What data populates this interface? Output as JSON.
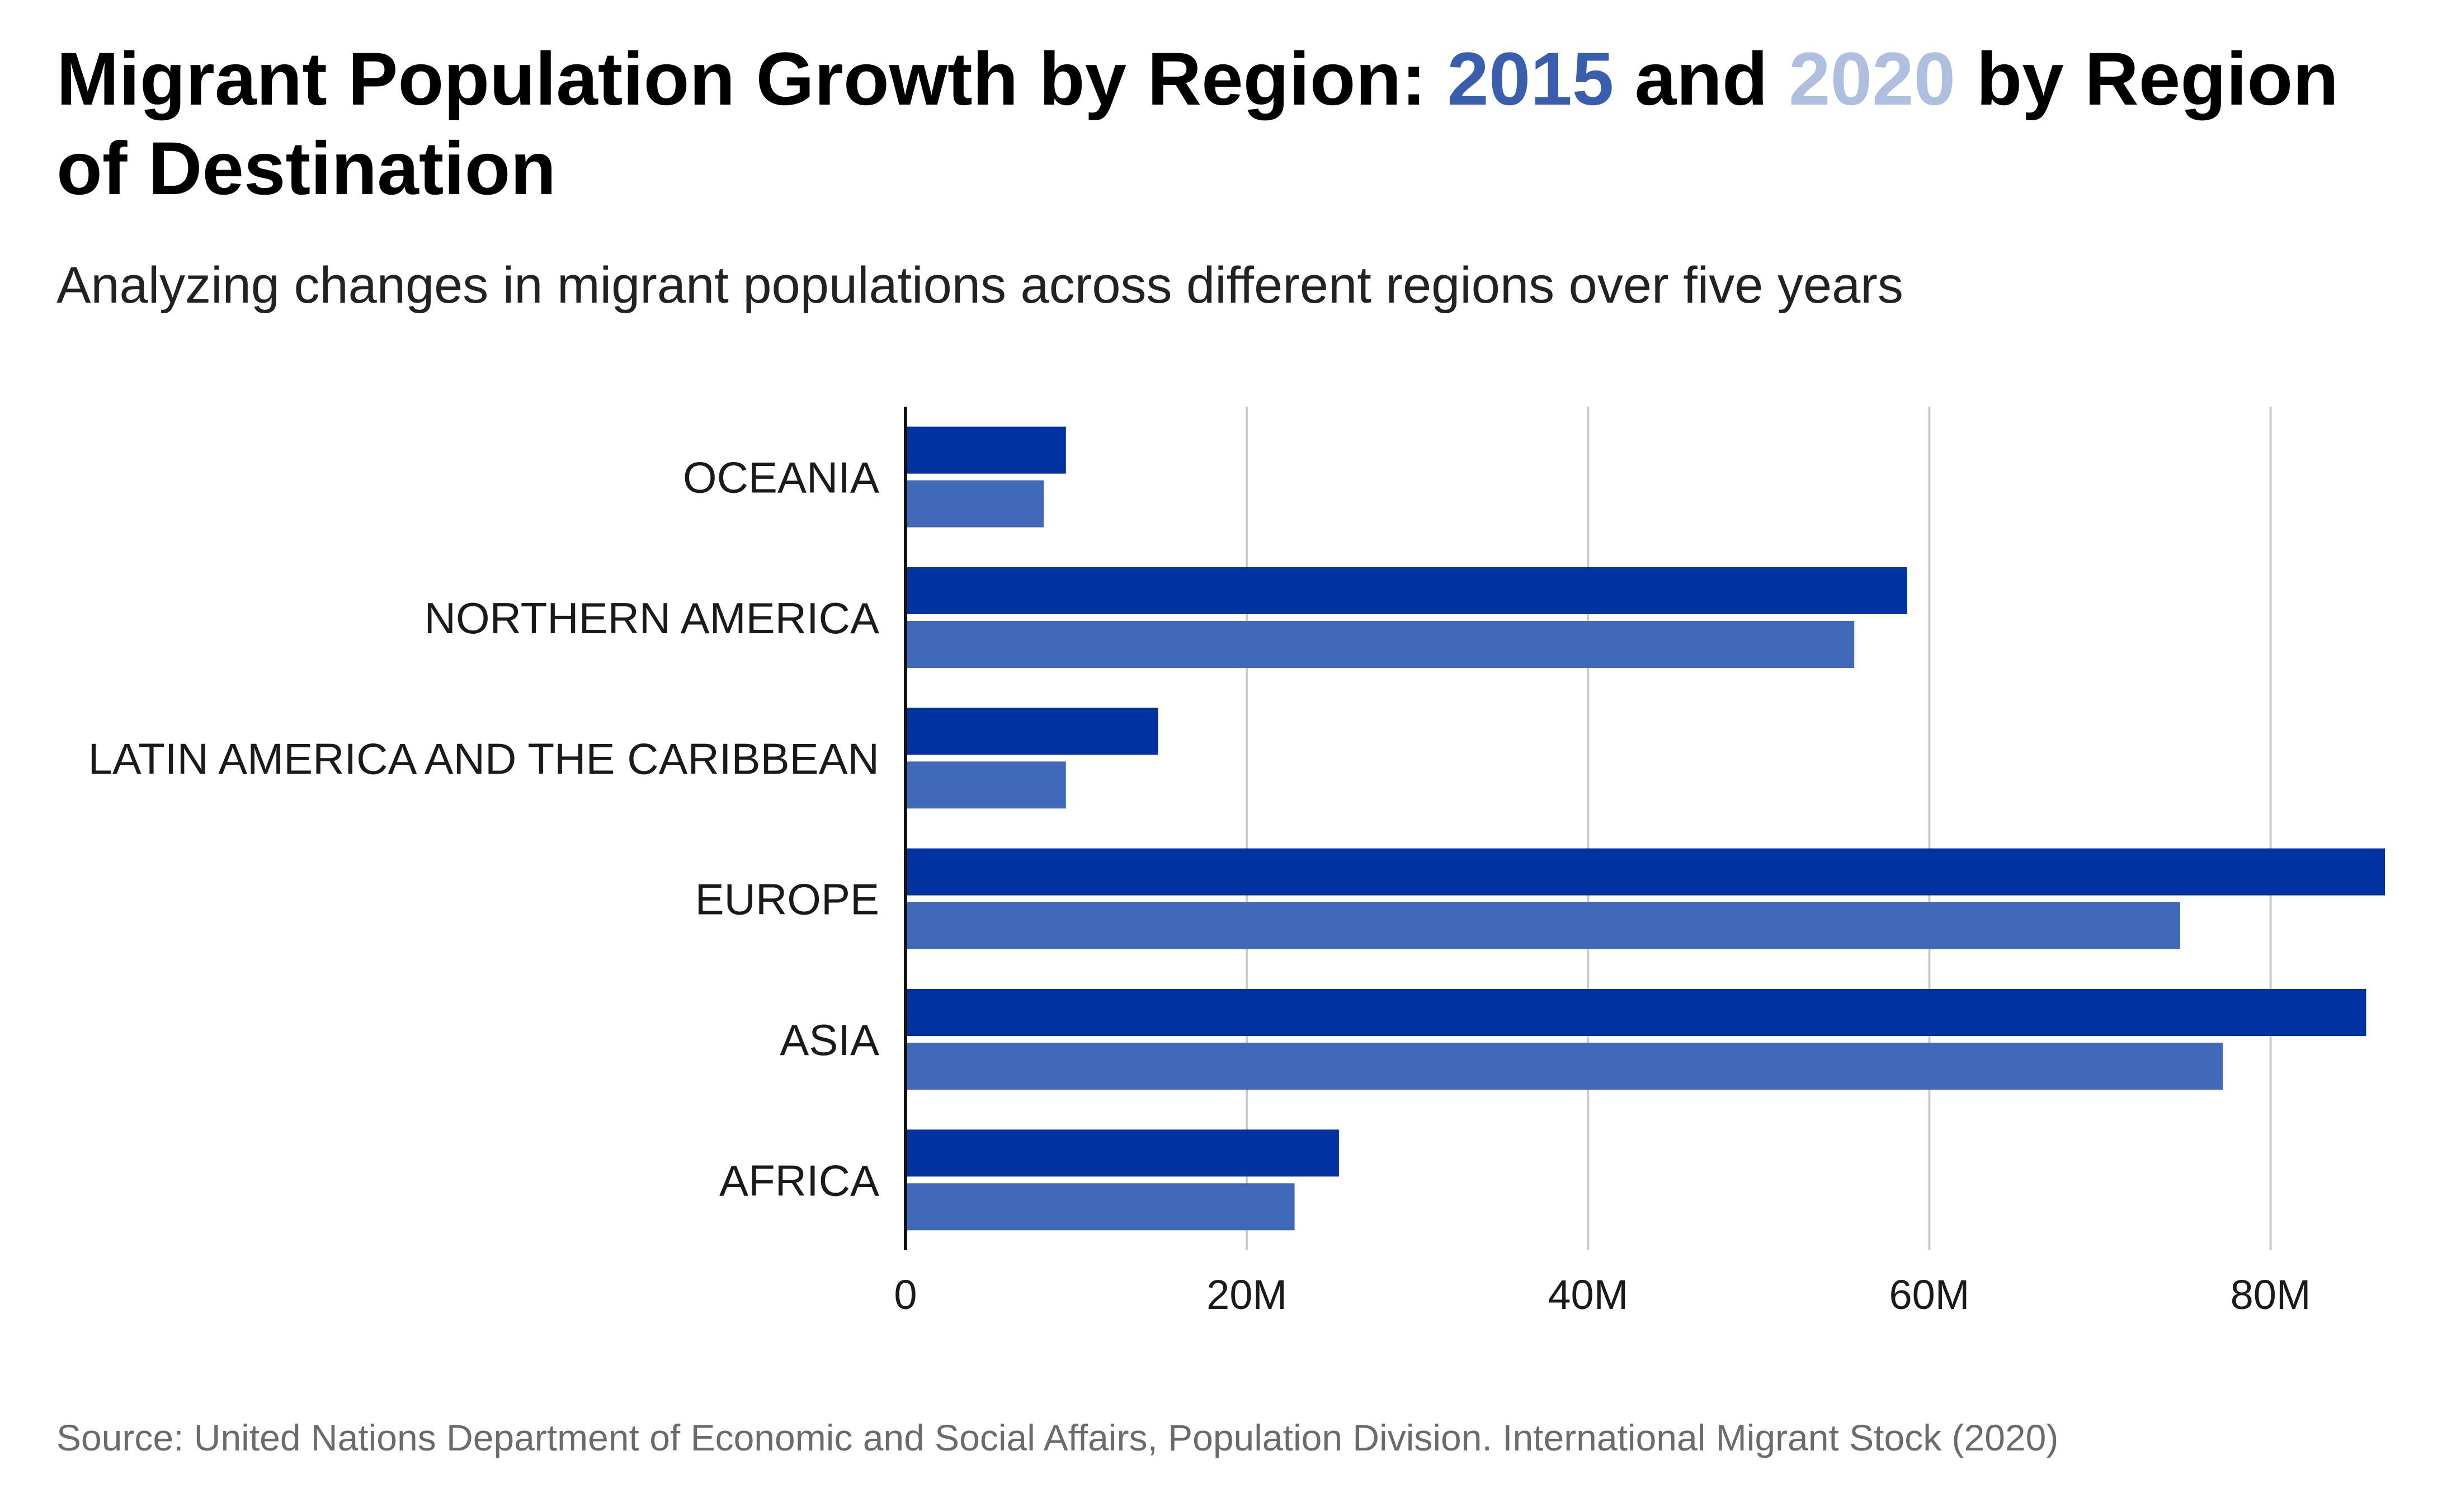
{
  "title": {
    "part1": "Migrant Population Growth by Region: ",
    "year1": "2015",
    "part2": " and ",
    "year2": "2020",
    "part3": " by Region of Destination"
  },
  "subtitle": "Analyzing changes in migrant populations across different regions over five years",
  "source": "Source: United Nations Department of Economic and Social Affairs, Population Division. International Migrant Stock (2020)",
  "colors": {
    "title_2015": "#3a5eae",
    "title_2020": "#aebfe0",
    "bar_dark": "#0033a0",
    "bar_light": "#4169b9",
    "grid": "#cccccc",
    "axis": "#111111"
  },
  "chart_data": {
    "type": "bar",
    "orientation": "horizontal",
    "categories": [
      "OCEANIA",
      "NORTHERN AMERICA",
      "LATIN AMERICA AND THE CARIBBEAN",
      "EUROPE",
      "ASIA",
      "AFRICA"
    ],
    "series": [
      {
        "values": [
          9.4,
          58.7,
          14.8,
          86.7,
          85.6,
          25.4
        ]
      },
      {
        "values": [
          8.1,
          55.6,
          9.4,
          74.7,
          77.2,
          22.8
        ]
      }
    ],
    "xticks": [
      0,
      20,
      40,
      60,
      80
    ],
    "xtick_labels": [
      "0",
      "20M",
      "40M",
      "60M",
      "80M"
    ],
    "xlim": [
      0,
      86.7
    ],
    "units": "millions",
    "grid": true,
    "legend": "none"
  }
}
